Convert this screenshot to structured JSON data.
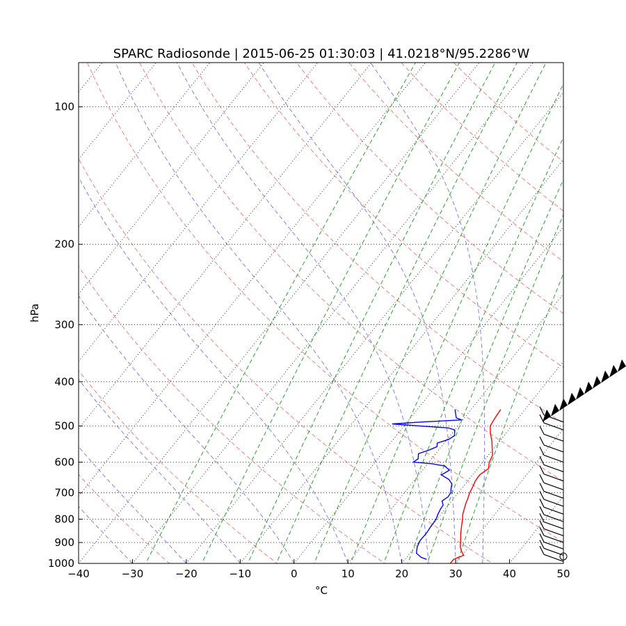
{
  "chart_data": {
    "type": "line",
    "title": "SPARC Radiosonde | 2015-06-25 01:30:03 | 41.0218°N/95.2286°W",
    "xlabel": "°C",
    "ylabel": "hPa",
    "xlim": [
      -40,
      50
    ],
    "ylim": [
      1000,
      80
    ],
    "yscale": "log",
    "x_ticks": [
      "−40",
      "−30",
      "−20",
      "−10",
      "0",
      "10",
      "20",
      "30",
      "40",
      "50"
    ],
    "y_ticks": [
      "100",
      "200",
      "300",
      "400",
      "500",
      "600",
      "700",
      "800",
      "900",
      "1000"
    ],
    "isobar_grid": true,
    "isotherm_grid": true,
    "colors": {
      "temperature": "#ff0000",
      "dewpoint": "#0000ff",
      "dry_adiabats": "#f08080",
      "moist_adiabats": "#8080f0",
      "mixing_ratio": "#2ca02c",
      "grid": "#000000",
      "barbs": "#000000"
    },
    "series": [
      {
        "values": [
          {
            "p": 460,
            "t": 15.5
          },
          {
            "p": 480,
            "t": 15.7
          },
          {
            "p": 500,
            "t": 16.0
          },
          {
            "p": 520,
            "t": 17.2
          },
          {
            "p": 540,
            "t": 18.6
          },
          {
            "p": 560,
            "t": 19.7
          },
          {
            "p": 580,
            "t": 20.8
          },
          {
            "p": 600,
            "t": 21.2
          },
          {
            "p": 620,
            "t": 22.0
          },
          {
            "p": 640,
            "t": 21.3
          },
          {
            "p": 660,
            "t": 21.4
          },
          {
            "p": 680,
            "t": 21.8
          },
          {
            "p": 700,
            "t": 22.1
          },
          {
            "p": 720,
            "t": 22.6
          },
          {
            "p": 740,
            "t": 23.0
          },
          {
            "p": 760,
            "t": 23.5
          },
          {
            "p": 780,
            "t": 24.0
          },
          {
            "p": 800,
            "t": 24.7
          },
          {
            "p": 830,
            "t": 25.6
          },
          {
            "p": 860,
            "t": 26.5
          },
          {
            "p": 890,
            "t": 27.5
          },
          {
            "p": 920,
            "t": 28.4
          },
          {
            "p": 945,
            "t": 29.5
          },
          {
            "p": 960,
            "t": 30.3
          },
          {
            "p": 970,
            "t": 29.6
          },
          {
            "p": 980,
            "t": 29.0
          },
          {
            "p": 1000,
            "t": 29.0
          }
        ]
      },
      {
        "values": [
          {
            "p": 460,
            "t": 7.0
          },
          {
            "p": 480,
            "t": 8.5
          },
          {
            "p": 485,
            "t": 9.8
          },
          {
            "p": 490,
            "t": 3.0
          },
          {
            "p": 495,
            "t": -2.5
          },
          {
            "p": 500,
            "t": 3.0
          },
          {
            "p": 505,
            "t": 8.5
          },
          {
            "p": 510,
            "t": 10.0
          },
          {
            "p": 525,
            "t": 10.8
          },
          {
            "p": 535,
            "t": 10.3
          },
          {
            "p": 545,
            "t": 8.7
          },
          {
            "p": 555,
            "t": 9.2
          },
          {
            "p": 565,
            "t": 8.2
          },
          {
            "p": 575,
            "t": 6.8
          },
          {
            "p": 590,
            "t": 7.5
          },
          {
            "p": 600,
            "t": 7.1
          },
          {
            "p": 605,
            "t": 10.8
          },
          {
            "p": 612,
            "t": 13.5
          },
          {
            "p": 625,
            "t": 15.0
          },
          {
            "p": 640,
            "t": 14.2
          },
          {
            "p": 655,
            "t": 16.3
          },
          {
            "p": 670,
            "t": 17.5
          },
          {
            "p": 685,
            "t": 18.0
          },
          {
            "p": 700,
            "t": 18.6
          },
          {
            "p": 715,
            "t": 18.7
          },
          {
            "p": 730,
            "t": 18.2
          },
          {
            "p": 745,
            "t": 19.0
          },
          {
            "p": 760,
            "t": 19.1
          },
          {
            "p": 780,
            "t": 19.4
          },
          {
            "p": 800,
            "t": 19.8
          },
          {
            "p": 830,
            "t": 19.9
          },
          {
            "p": 860,
            "t": 20.1
          },
          {
            "p": 890,
            "t": 20.0
          },
          {
            "p": 920,
            "t": 20.4
          },
          {
            "p": 950,
            "t": 21.2
          },
          {
            "p": 970,
            "t": 22.7
          },
          {
            "p": 980,
            "t": 24.0
          }
        ]
      }
    ]
  }
}
